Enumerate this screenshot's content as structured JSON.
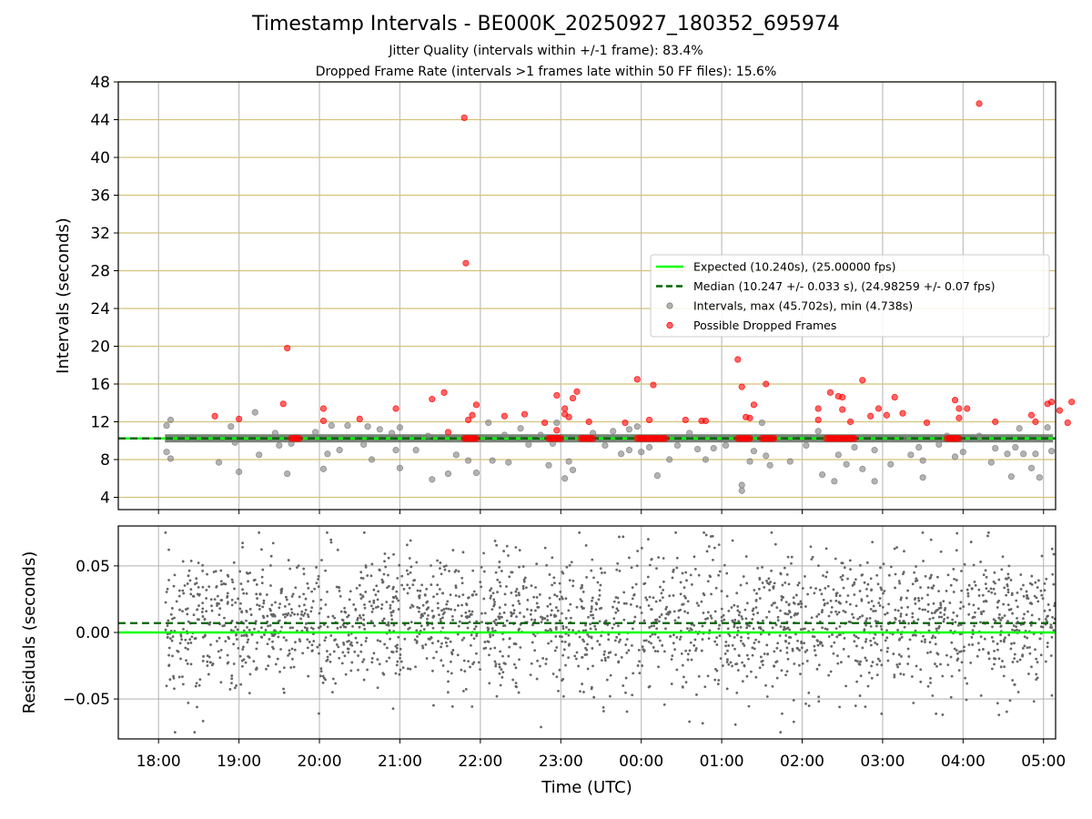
{
  "chart_data": {
    "title": "Timestamp Intervals - BE000K_20250927_180352_695974",
    "subtitles": [
      "Jitter Quality (intervals within +/-1 frame): 83.4%",
      "Dropped Frame Rate (intervals >1 frames late within 50 FF files): 15.6%"
    ],
    "x_ticks": [
      "18:00",
      "19:00",
      "20:00",
      "21:00",
      "22:00",
      "23:00",
      "00:00",
      "01:00",
      "02:00",
      "03:00",
      "04:00",
      "05:00"
    ],
    "xlabel": "Time (UTC)",
    "panels": [
      {
        "type": "scatter",
        "ylabel": "Intervals (seconds)",
        "ylim": [
          2.7,
          48
        ],
        "y_ticks": [
          "4",
          "8",
          "12",
          "16",
          "20",
          "24",
          "28",
          "32",
          "36",
          "40",
          "44",
          "48"
        ],
        "grid": true,
        "legend_position": "center-right",
        "legend": [
          "Expected (10.240s), (25.00000 fps)",
          "Median (10.247 +/- 0.033 s), (24.98259 +/- 0.07 fps)",
          "Intervals, max (45.702s), min (4.738s)",
          "Possible Dropped Frames"
        ],
        "expected_interval": 10.24,
        "median_interval": 10.247,
        "series": [
          {
            "name": "Intervals, max (45.702s), min (4.738s)",
            "color": "#808080",
            "points": [
              [
                18.1,
                11.6
              ],
              [
                18.15,
                12.2
              ],
              [
                18.1,
                8.8
              ],
              [
                18.15,
                8.1
              ],
              [
                18.9,
                11.5
              ],
              [
                18.95,
                9.8
              ],
              [
                19.0,
                6.7
              ],
              [
                19.2,
                13.0
              ],
              [
                19.25,
                8.5
              ],
              [
                19.45,
                10.8
              ],
              [
                19.5,
                9.5
              ],
              [
                18.75,
                7.7
              ],
              [
                19.6,
                6.5
              ],
              [
                19.65,
                9.7
              ],
              [
                19.95,
                10.9
              ],
              [
                20.05,
                7.0
              ],
              [
                20.1,
                8.6
              ],
              [
                20.15,
                11.6
              ],
              [
                20.25,
                9.0
              ],
              [
                20.35,
                11.6
              ],
              [
                20.55,
                9.6
              ],
              [
                20.6,
                11.5
              ],
              [
                20.65,
                8.0
              ],
              [
                20.75,
                11.2
              ],
              [
                20.9,
                10.8
              ],
              [
                20.95,
                9.0
              ],
              [
                21.0,
                11.4
              ],
              [
                21.0,
                7.1
              ],
              [
                21.2,
                9.0
              ],
              [
                21.35,
                10.5
              ],
              [
                21.4,
                5.9
              ],
              [
                21.6,
                6.5
              ],
              [
                21.7,
                8.5
              ],
              [
                21.85,
                7.9
              ],
              [
                21.95,
                6.6
              ],
              [
                22.1,
                11.9
              ],
              [
                22.15,
                7.9
              ],
              [
                22.3,
                10.6
              ],
              [
                22.35,
                7.7
              ],
              [
                22.5,
                11.3
              ],
              [
                22.6,
                9.6
              ],
              [
                22.75,
                10.6
              ],
              [
                22.85,
                7.4
              ],
              [
                22.9,
                9.7
              ],
              [
                22.95,
                11.9
              ],
              [
                23.05,
                6.0
              ],
              [
                23.1,
                7.8
              ],
              [
                23.15,
                6.9
              ],
              [
                23.4,
                10.8
              ],
              [
                23.55,
                9.5
              ],
              [
                23.65,
                11.0
              ],
              [
                23.75,
                8.6
              ],
              [
                23.85,
                11.2
              ],
              [
                23.85,
                9.0
              ],
              [
                23.95,
                11.5
              ],
              [
                24.0,
                8.8
              ],
              [
                24.1,
                9.3
              ],
              [
                24.2,
                6.3
              ],
              [
                24.35,
                8.0
              ],
              [
                24.45,
                9.5
              ],
              [
                24.6,
                10.8
              ],
              [
                24.7,
                9.1
              ],
              [
                24.8,
                8.0
              ],
              [
                24.9,
                9.2
              ],
              [
                25.05,
                9.5
              ],
              [
                25.25,
                5.3
              ],
              [
                25.25,
                4.7
              ],
              [
                25.35,
                7.8
              ],
              [
                25.4,
                8.9
              ],
              [
                25.5,
                11.9
              ],
              [
                25.55,
                8.4
              ],
              [
                25.6,
                7.4
              ],
              [
                25.85,
                7.8
              ],
              [
                26.05,
                9.5
              ],
              [
                26.2,
                11.0
              ],
              [
                26.25,
                6.4
              ],
              [
                26.4,
                5.7
              ],
              [
                26.45,
                8.5
              ],
              [
                26.55,
                7.5
              ],
              [
                26.65,
                9.3
              ],
              [
                26.75,
                7.0
              ],
              [
                26.9,
                9.0
              ],
              [
                26.9,
                5.7
              ],
              [
                27.1,
                7.5
              ],
              [
                27.3,
                10.2
              ],
              [
                27.35,
                8.5
              ],
              [
                27.45,
                9.3
              ],
              [
                27.5,
                6.1
              ],
              [
                27.5,
                7.9
              ],
              [
                27.7,
                9.6
              ],
              [
                27.8,
                10.5
              ],
              [
                27.9,
                8.3
              ],
              [
                28.0,
                8.8
              ],
              [
                28.2,
                10.5
              ],
              [
                28.35,
                7.7
              ],
              [
                28.4,
                9.2
              ],
              [
                28.55,
                8.6
              ],
              [
                28.6,
                6.2
              ],
              [
                28.65,
                9.3
              ],
              [
                28.7,
                11.3
              ],
              [
                28.75,
                8.6
              ],
              [
                28.85,
                7.1
              ],
              [
                28.9,
                8.6
              ],
              [
                28.95,
                6.1
              ],
              [
                29.05,
                11.4
              ],
              [
                29.1,
                8.9
              ]
            ]
          },
          {
            "name": "Possible Dropped Frames",
            "color": "#ff0000",
            "points": [
              [
                18.7,
                12.6
              ],
              [
                19.0,
                12.3
              ],
              [
                19.55,
                13.9
              ],
              [
                19.6,
                19.8
              ],
              [
                20.05,
                13.4
              ],
              [
                20.05,
                12.1
              ],
              [
                20.5,
                12.3
              ],
              [
                20.95,
                13.4
              ],
              [
                21.4,
                14.4
              ],
              [
                21.55,
                15.1
              ],
              [
                21.6,
                10.9
              ],
              [
                21.8,
                44.2
              ],
              [
                21.82,
                28.8
              ],
              [
                21.85,
                12.2
              ],
              [
                21.9,
                12.7
              ],
              [
                21.95,
                13.8
              ],
              [
                22.3,
                12.6
              ],
              [
                22.55,
                12.8
              ],
              [
                22.8,
                11.9
              ],
              [
                22.95,
                14.8
              ],
              [
                22.95,
                11.1
              ],
              [
                23.05,
                13.4
              ],
              [
                23.05,
                12.8
              ],
              [
                23.1,
                12.5
              ],
              [
                23.15,
                14.5
              ],
              [
                23.2,
                15.2
              ],
              [
                23.35,
                12.0
              ],
              [
                23.8,
                11.9
              ],
              [
                23.95,
                16.5
              ],
              [
                24.1,
                12.2
              ],
              [
                24.15,
                15.9
              ],
              [
                24.55,
                12.2
              ],
              [
                24.75,
                12.1
              ],
              [
                24.8,
                12.1
              ],
              [
                25.2,
                18.6
              ],
              [
                25.25,
                15.7
              ],
              [
                25.3,
                12.5
              ],
              [
                25.35,
                12.4
              ],
              [
                25.4,
                13.8
              ],
              [
                25.55,
                16.0
              ],
              [
                26.2,
                12.2
              ],
              [
                26.2,
                13.4
              ],
              [
                26.35,
                15.1
              ],
              [
                26.45,
                14.7
              ],
              [
                26.5,
                14.6
              ],
              [
                26.5,
                13.3
              ],
              [
                26.6,
                12.0
              ],
              [
                26.75,
                16.4
              ],
              [
                26.85,
                12.6
              ],
              [
                26.95,
                13.4
              ],
              [
                27.05,
                12.7
              ],
              [
                27.15,
                14.6
              ],
              [
                27.25,
                12.9
              ],
              [
                27.55,
                11.9
              ],
              [
                27.9,
                14.3
              ],
              [
                27.95,
                13.4
              ],
              [
                27.95,
                12.4
              ],
              [
                28.05,
                13.4
              ],
              [
                28.2,
                45.7
              ],
              [
                28.4,
                12.0
              ],
              [
                28.85,
                12.7
              ],
              [
                28.9,
                12.0
              ],
              [
                29.05,
                13.9
              ],
              [
                29.1,
                14.1
              ],
              [
                29.2,
                13.2
              ],
              [
                29.3,
                11.9
              ],
              [
                29.35,
                14.1
              ]
            ]
          },
          {
            "name": "dropped-frame-clusters",
            "color": "#ff0000",
            "ranges": [
              [
                19.65,
                19.75
              ],
              [
                21.8,
                21.95
              ],
              [
                22.85,
                23.0
              ],
              [
                23.25,
                23.4
              ],
              [
                23.95,
                24.3
              ],
              [
                25.2,
                25.35
              ],
              [
                25.5,
                25.65
              ],
              [
                26.3,
                26.65
              ],
              [
                27.8,
                27.95
              ]
            ],
            "y": 10.24
          }
        ]
      },
      {
        "type": "scatter",
        "ylabel": "Residuals (seconds)",
        "ylim": [
          -0.08,
          0.08
        ],
        "y_ticks": [
          "0.05",
          "0.00",
          "−0.05"
        ],
        "grid": true,
        "expected_residual": 0.0,
        "median_residual": 0.007,
        "series": [
          {
            "name": "residuals",
            "color": "#666666",
            "count": 2400,
            "distribution": {
              "mean": 0.007,
              "sd": 0.026,
              "min": -0.075,
              "max": 0.075
            }
          }
        ]
      }
    ],
    "colors": {
      "expected": "#00ff00",
      "median": "#006400",
      "intervals": "#808080",
      "dropped": "#ff0000",
      "hgrid_top": "#d4c27a",
      "grid": "#b0b0b0"
    }
  }
}
